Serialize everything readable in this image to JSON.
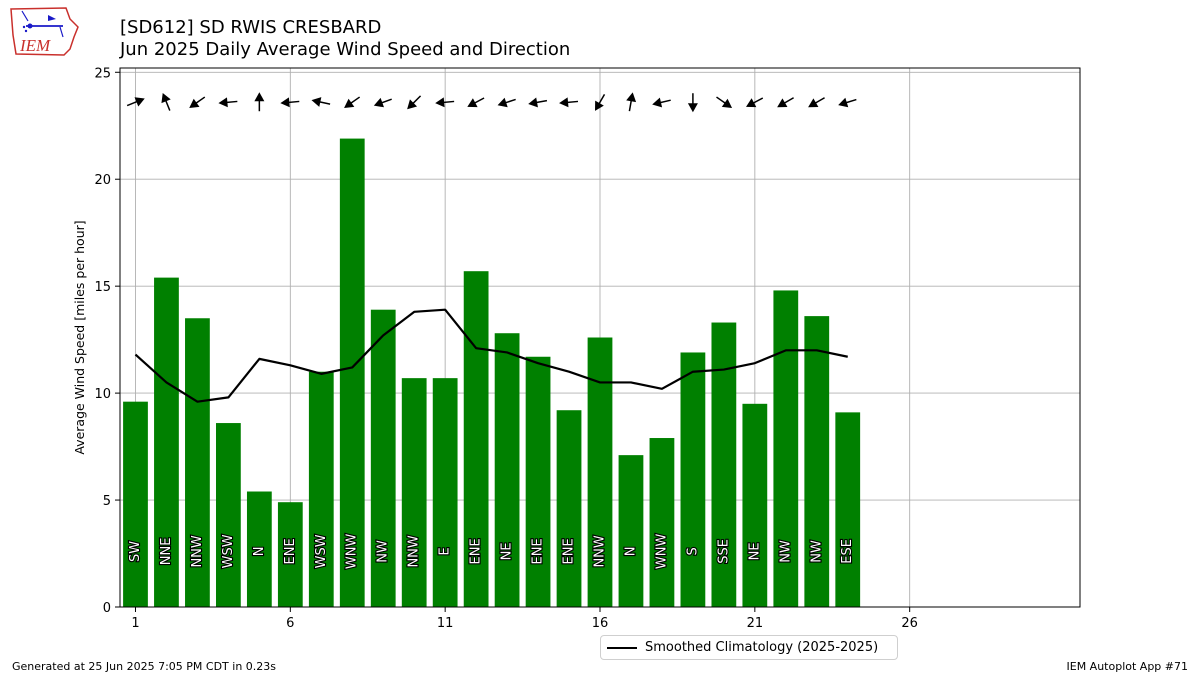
{
  "header": {
    "logo_text": "IEM",
    "title_line1": "[SD612] SD RWIS CRESBARD",
    "title_line2": "Jun 2025 Daily Average Wind Speed and Direction"
  },
  "footer": {
    "generated": "Generated at 25 Jun 2025 7:05 PM CDT in 0.23s",
    "app": "IEM Autoplot App #71"
  },
  "chart_data": {
    "type": "bar",
    "title": "Jun 2025 Daily Average Wind Speed and Direction",
    "ylabel": "Average Wind Speed [miles per hour]",
    "xlabel": "",
    "xlim": [
      0.5,
      31.5
    ],
    "ylim": [
      0,
      25.2
    ],
    "xticks": [
      1,
      6,
      11,
      16,
      21,
      26
    ],
    "yticks": [
      0,
      5,
      10,
      15,
      20,
      25
    ],
    "grid": true,
    "bar_color": "#008000",
    "days": [
      1,
      2,
      3,
      4,
      5,
      6,
      7,
      8,
      9,
      10,
      11,
      12,
      13,
      14,
      15,
      16,
      17,
      18,
      19,
      20,
      21,
      22,
      23,
      24
    ],
    "values": [
      9.6,
      15.4,
      13.5,
      8.6,
      5.4,
      4.9,
      11.0,
      21.9,
      13.9,
      10.7,
      10.7,
      15.7,
      12.8,
      11.7,
      9.2,
      12.6,
      7.1,
      7.9,
      11.9,
      13.3,
      9.5,
      14.8,
      13.6,
      9.1
    ],
    "directions": [
      "SW",
      "NNE",
      "NNW",
      "WSW",
      "N",
      "ENE",
      "WSW",
      "WNW",
      "NW",
      "NNW",
      "E",
      "ENE",
      "NE",
      "ENE",
      "ENE",
      "NNW",
      "N",
      "WNW",
      "S",
      "SSE",
      "NE",
      "NW",
      "NW",
      "ESE"
    ],
    "arrow_angles_deg": [
      -22,
      -112,
      145,
      175,
      -90,
      175,
      -168,
      145,
      160,
      135,
      175,
      152,
      162,
      170,
      175,
      120,
      -80,
      167,
      90,
      35,
      152,
      150,
      150,
      163
    ],
    "series": [
      {
        "name": "Smoothed Climatology (2025-2025)",
        "color": "#000000",
        "values": [
          11.8,
          10.5,
          9.6,
          9.8,
          11.6,
          11.3,
          10.9,
          11.2,
          12.7,
          13.8,
          13.9,
          12.1,
          11.9,
          11.4,
          11.0,
          10.5,
          10.5,
          10.2,
          11.0,
          11.1,
          11.4,
          12.0,
          12.0,
          11.7
        ]
      }
    ]
  }
}
